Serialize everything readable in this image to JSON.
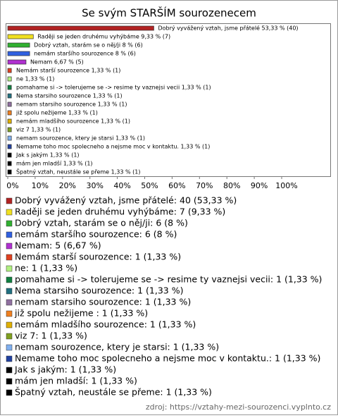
{
  "chart_data": {
    "type": "bar",
    "orientation": "horizontal",
    "title": "Se svým STARŠÍM sourozenecem",
    "categories": [
      "Dobrý vyvážený vztah, jsme přátelé",
      "Raději se jeden druhému vyhýbáme",
      "Dobrý vztah, starám se o něj/ji",
      "nemám staršího sourozence",
      "Nemam",
      "Nemám starší sourozence",
      "ne",
      "pomahame si -> tolerujeme se -> resime ty vaznejsi vecii",
      "Nema starsiho sourozence",
      "nemam starsiho sourozence",
      "již spolu nežijeme ",
      "nemám mladšího sourozence",
      "viz 7",
      "nemam sourozence, ktery je starsi",
      "Nemame toho moc spolecneho a nejsme moc v kontaktu.",
      "Jak s jakým",
      "mám jen mladší",
      "Špatný vztah, neustále se přeme"
    ],
    "values": [
      53.33,
      9.33,
      8,
      8,
      6.67,
      1.33,
      1.33,
      1.33,
      1.33,
      1.33,
      1.33,
      1.33,
      1.33,
      1.33,
      1.33,
      1.33,
      1.33,
      1.33
    ],
    "value_labels": [
      "Dobrý vyvážený vztah, jsme přátelé 53,33 % (40)",
      "Raději se jeden druhému vyhýbáme 9,33 % (7)",
      "Dobrý vztah, starám se o něj/ji 8 % (6)",
      "nemám staršího sourozence 8 % (6)",
      "Nemam 6,67 % (5)",
      "Nemám starší sourozence 1,33 % (1)",
      "ne 1,33 % (1)",
      "pomahame si -> tolerujeme se -> resime ty vaznejsi vecii 1,33 % (1)",
      "Nema starsiho sourozence 1,33 % (1)",
      "nemam starsiho sourozence 1,33 % (1)",
      "již spolu nežijeme  1,33 % (1)",
      "nemám mladšího sourozence 1,33 % (1)",
      "viz 7 1,33 % (1)",
      "nemam sourozence, ktery je starsi 1,33 % (1)",
      "Nemame toho moc spolecneho a nejsme moc v kontaktu. 1,33 % (1)",
      "Jak s jakým 1,33 % (1)",
      "mám jen mladší 1,33 % (1)",
      "Špatný vztah, neustále se přeme 1,33 % (1)"
    ],
    "legend_labels": [
      "Dobrý vyvážený vztah, jsme přátelé: 40 (53,33 %)",
      "Raději se jeden druhému vyhýbáme: 7 (9,33 %)",
      "Dobrý vztah, starám se o něj/ji: 6 (8 %)",
      "nemám staršího sourozence: 6 (8 %)",
      "Nemam: 5 (6,67 %)",
      "Nemám starší sourozence: 1 (1,33 %)",
      "ne: 1 (1,33 %)",
      "pomahame si -> tolerujeme se -> resime ty vaznejsi vecii: 1 (1,33 %)",
      "Nema starsiho sourozence: 1 (1,33 %)",
      "nemam starsiho sourozence: 1 (1,33 %)",
      "již spolu nežijeme : 1 (1,33 %)",
      "nemám mladšího sourozence: 1 (1,33 %)",
      "viz 7: 1 (1,33 %)",
      "nemam sourozence, ktery je starsi: 1 (1,33 %)",
      "Nemame toho moc spolecneho a nejsme moc v kontaktu.: 1 (1,33 %)",
      "Jak s jakým: 1 (1,33 %)",
      "mám jen mladší: 1 (1,33 %)",
      "Špatný vztah, neustále se přeme: 1 (1,33 %)"
    ],
    "colors": [
      "#b22222",
      "#f0e020",
      "#30b030",
      "#3060e0",
      "#b030d0",
      "#e04020",
      "#b0f080",
      "#108040",
      "#207080",
      "#9070a0",
      "#f08020",
      "#e0b000",
      "#80a020",
      "#80b0f0",
      "#2040a0",
      "#000000",
      "#000000",
      "#000000"
    ],
    "xlim": [
      0,
      100
    ],
    "xticks": [
      {
        "value": 0,
        "label": "0%"
      },
      {
        "value": 10,
        "label": "10%"
      },
      {
        "value": 20,
        "label": "20%"
      },
      {
        "value": 30,
        "label": "30%"
      },
      {
        "value": 40,
        "label": "40%"
      },
      {
        "value": 50,
        "label": "50%"
      },
      {
        "value": 60,
        "label": "60%"
      },
      {
        "value": 70,
        "label": "70%"
      },
      {
        "value": 80,
        "label": "80%"
      },
      {
        "value": 90,
        "label": "90%"
      },
      {
        "value": 100,
        "label": "100%"
      }
    ],
    "source": "zdroj: https://vztahy-mezi-sourozenci.vyplnto.cz"
  }
}
